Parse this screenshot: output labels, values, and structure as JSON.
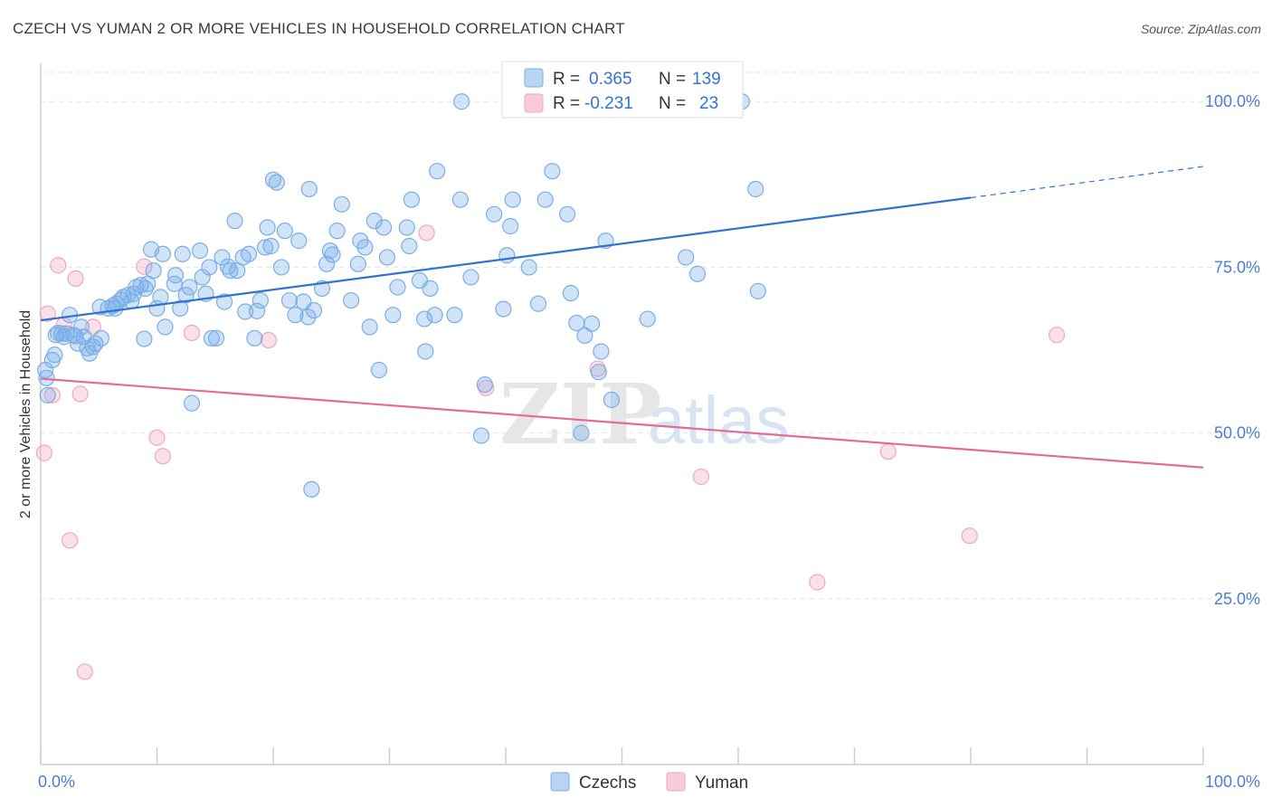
{
  "header": {
    "title": "CZECH VS YUMAN 2 OR MORE VEHICLES IN HOUSEHOLD CORRELATION CHART",
    "source": "Source: ZipAtlas.com"
  },
  "watermark": {
    "zip": "ZIP",
    "atlas": "atlas"
  },
  "stats": {
    "czechs": {
      "r_label": "R =",
      "r": "0.365",
      "n_label": "N =",
      "n": "139"
    },
    "yuman": {
      "r_label": "R =",
      "r": "-0.231",
      "n_label": "N =",
      "n": "23"
    }
  },
  "chart_data": {
    "type": "scatter",
    "title": "CZECH VS YUMAN 2 OR MORE VEHICLES IN HOUSEHOLD CORRELATION CHART",
    "xlabel": "",
    "ylabel": "2 or more Vehicles in Household",
    "xlim": [
      0,
      100
    ],
    "ylim": [
      0,
      105
    ],
    "x_ticks": [
      "0.0%",
      "100.0%"
    ],
    "y_ticks": [
      {
        "value": 100,
        "label": "100.0%"
      },
      {
        "value": 75,
        "label": "75.0%"
      },
      {
        "value": 50,
        "label": "50.0%"
      },
      {
        "value": 25,
        "label": "25.0%"
      }
    ],
    "grid": true,
    "legend_position": "bottom-center",
    "colors": {
      "czechs": "#7aaee8",
      "yuman": "#f2a6bf",
      "czechs_line": "#2f74d0",
      "yuman_line": "#e56b97"
    },
    "series": [
      {
        "name": "Czechs",
        "trend": {
          "x0": 0,
          "y0": 67.0,
          "x1": 80,
          "y1": 85.5,
          "dashed_to_x": 100,
          "dashed_to_y": 90.2
        },
        "points": [
          [
            0.5,
            58.3
          ],
          [
            0.6,
            55.7
          ],
          [
            1.0,
            61.0
          ],
          [
            1.2,
            61.8
          ],
          [
            1.3,
            64.8
          ],
          [
            1.5,
            65.1
          ],
          [
            2.0,
            64.5
          ],
          [
            2.2,
            65.0
          ],
          [
            2.5,
            67.8
          ],
          [
            2.8,
            64.8
          ],
          [
            3.2,
            63.5
          ],
          [
            3.5,
            66.0
          ],
          [
            3.7,
            64.5
          ],
          [
            4.0,
            62.8
          ],
          [
            4.2,
            62.0
          ],
          [
            4.7,
            63.5
          ],
          [
            5.2,
            64.3
          ],
          [
            5.1,
            69.0
          ],
          [
            5.8,
            68.8
          ],
          [
            6.2,
            69.2
          ],
          [
            6.4,
            68.8
          ],
          [
            6.5,
            69.5
          ],
          [
            6.9,
            70.1
          ],
          [
            7.1,
            70.5
          ],
          [
            7.5,
            70.8
          ],
          [
            7.8,
            69.9
          ],
          [
            8.2,
            72.0
          ],
          [
            8.6,
            72.3
          ],
          [
            8.9,
            64.2
          ],
          [
            9.2,
            72.5
          ],
          [
            9.0,
            71.8
          ],
          [
            9.5,
            77.7
          ],
          [
            9.7,
            74.5
          ],
          [
            10.0,
            68.8
          ],
          [
            10.3,
            70.5
          ],
          [
            10.7,
            66.0
          ],
          [
            11.5,
            72.5
          ],
          [
            11.6,
            73.8
          ],
          [
            12.0,
            68.8
          ],
          [
            12.5,
            70.8
          ],
          [
            12.2,
            77.0
          ],
          [
            12.8,
            72.0
          ],
          [
            13.0,
            54.5
          ],
          [
            13.7,
            77.5
          ],
          [
            13.9,
            73.5
          ],
          [
            14.2,
            71.0
          ],
          [
            14.5,
            75.0
          ],
          [
            14.7,
            64.3
          ],
          [
            15.1,
            64.3
          ],
          [
            15.6,
            76.5
          ],
          [
            15.8,
            69.8
          ],
          [
            16.1,
            75.1
          ],
          [
            16.3,
            74.5
          ],
          [
            16.7,
            82.0
          ],
          [
            16.9,
            74.5
          ],
          [
            17.4,
            76.5
          ],
          [
            17.6,
            68.3
          ],
          [
            17.9,
            77.0
          ],
          [
            18.4,
            64.3
          ],
          [
            18.6,
            68.4
          ],
          [
            18.9,
            70.0
          ],
          [
            19.3,
            78.0
          ],
          [
            19.5,
            81.0
          ],
          [
            19.8,
            78.2
          ],
          [
            20.0,
            88.2
          ],
          [
            20.3,
            87.8
          ],
          [
            20.7,
            75.0
          ],
          [
            21.0,
            80.5
          ],
          [
            21.4,
            70.0
          ],
          [
            21.9,
            67.8
          ],
          [
            22.2,
            79.0
          ],
          [
            22.6,
            69.8
          ],
          [
            23.0,
            67.5
          ],
          [
            23.1,
            86.8
          ],
          [
            23.5,
            68.5
          ],
          [
            23.3,
            41.5
          ],
          [
            24.2,
            71.8
          ],
          [
            24.6,
            75.5
          ],
          [
            24.9,
            77.5
          ],
          [
            25.1,
            76.9
          ],
          [
            25.5,
            80.5
          ],
          [
            25.9,
            84.5
          ],
          [
            26.7,
            70.0
          ],
          [
            27.3,
            75.5
          ],
          [
            27.5,
            79.0
          ],
          [
            27.9,
            78.0
          ],
          [
            28.3,
            66.0
          ],
          [
            28.7,
            82.0
          ],
          [
            29.1,
            59.5
          ],
          [
            29.5,
            81.0
          ],
          [
            29.8,
            76.5
          ],
          [
            30.3,
            67.8
          ],
          [
            30.7,
            72.0
          ],
          [
            31.5,
            81.0
          ],
          [
            31.7,
            78.2
          ],
          [
            31.9,
            85.2
          ],
          [
            32.6,
            73.0
          ],
          [
            33.0,
            67.2
          ],
          [
            33.1,
            62.3
          ],
          [
            33.5,
            71.8
          ],
          [
            33.9,
            67.8
          ],
          [
            34.1,
            89.5
          ],
          [
            35.6,
            67.8
          ],
          [
            36.1,
            85.2
          ],
          [
            36.2,
            100.0
          ],
          [
            37.0,
            73.5
          ],
          [
            37.9,
            49.6
          ],
          [
            38.2,
            57.3
          ],
          [
            39.0,
            83.0
          ],
          [
            39.8,
            68.7
          ],
          [
            40.1,
            76.8
          ],
          [
            40.4,
            81.2
          ],
          [
            40.6,
            85.2
          ],
          [
            42.0,
            75.0
          ],
          [
            42.8,
            69.5
          ],
          [
            43.4,
            85.2
          ],
          [
            44.0,
            89.5
          ],
          [
            45.3,
            83.0
          ],
          [
            45.6,
            71.1
          ],
          [
            46.1,
            66.6
          ],
          [
            46.5,
            50.0
          ],
          [
            46.8,
            64.7
          ],
          [
            47.4,
            66.5
          ],
          [
            48.0,
            59.2
          ],
          [
            48.2,
            62.3
          ],
          [
            48.6,
            79.0
          ],
          [
            49.1,
            55.0
          ],
          [
            52.2,
            67.2
          ],
          [
            55.5,
            76.5
          ],
          [
            56.5,
            74.0
          ],
          [
            60.3,
            100.0
          ],
          [
            61.5,
            86.8
          ],
          [
            61.7,
            71.4
          ],
          [
            0.4,
            59.5
          ],
          [
            1.8,
            65.0
          ],
          [
            3.0,
            64.6
          ],
          [
            4.5,
            63.0
          ],
          [
            8.0,
            71.0
          ],
          [
            10.5,
            77.0
          ]
        ]
      },
      {
        "name": "Yuman",
        "trend": {
          "x0": 0,
          "y0": 58.2,
          "x1": 100,
          "y1": 44.8
        },
        "points": [
          [
            0.3,
            47.0
          ],
          [
            0.6,
            68.0
          ],
          [
            1.0,
            55.7
          ],
          [
            1.5,
            75.3
          ],
          [
            2.0,
            66.3
          ],
          [
            2.5,
            33.8
          ],
          [
            3.0,
            73.3
          ],
          [
            3.4,
            55.9
          ],
          [
            3.8,
            14.0
          ],
          [
            4.5,
            66.0
          ],
          [
            8.9,
            75.1
          ],
          [
            10.0,
            49.3
          ],
          [
            10.5,
            46.5
          ],
          [
            13.0,
            65.1
          ],
          [
            19.6,
            64.0
          ],
          [
            33.2,
            80.2
          ],
          [
            38.3,
            56.8
          ],
          [
            47.9,
            59.7
          ],
          [
            56.8,
            43.4
          ],
          [
            66.8,
            27.5
          ],
          [
            72.9,
            47.2
          ],
          [
            79.9,
            34.5
          ],
          [
            87.4,
            64.8
          ]
        ]
      }
    ]
  },
  "legend": {
    "items": [
      "Czechs",
      "Yuman"
    ]
  }
}
